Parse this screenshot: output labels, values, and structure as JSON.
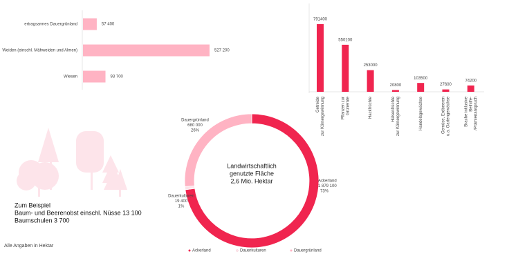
{
  "chart_data": [
    {
      "type": "bar",
      "orientation": "horizontal",
      "categories": [
        "ertragsarmes Dauergrünland",
        "Weiden (einschl. Mähweiden und Almen)",
        "Wiesen"
      ],
      "values": [
        57400,
        527200,
        93700
      ],
      "value_labels": [
        "57 400",
        "527 200",
        "93 700"
      ],
      "color": "#ffb3c3"
    },
    {
      "type": "bar",
      "orientation": "vertical",
      "categories": [
        [
          "Getreide",
          "zur Körnergewinnung"
        ],
        [
          "Pflanzen zur",
          "Grünernte"
        ],
        [
          "Hackfrüchte"
        ],
        [
          "Hülsenfrüchte",
          "zur Körnergewinnung"
        ],
        [
          "Handelsgewächse"
        ],
        [
          "Gemüse, Erdbeeren",
          "u.a. Gartengewächse"
        ],
        [
          "Brache inklusive",
          "Beihilfe-",
          "/Prämienanspruch"
        ]
      ],
      "values": [
        791400,
        550100,
        253000,
        20800,
        103500,
        27600,
        74200
      ],
      "color": "#f0254f"
    },
    {
      "type": "donut",
      "center_text": [
        "Landwirtschaftlich",
        "genutzte Fläche",
        "2,6 Mio. Hektar"
      ],
      "categories": [
        "Ackerland",
        "Dauerkulturen",
        "Dauergrünland"
      ],
      "values": [
        1879100,
        19400,
        680000
      ],
      "value_labels": [
        "1 879 100",
        "19 400",
        "680 000"
      ],
      "percent": [
        73,
        1,
        26
      ],
      "percent_labels": [
        "73%",
        "1%",
        "26%"
      ],
      "colors": [
        "#f0254f",
        "#fde4ea",
        "#ffb3c3"
      ],
      "legend": "bottom"
    }
  ],
  "note": [
    "Zum Beispiel",
    "Baum- und Beerenobst einschl. Nüsse 13 100",
    "Baumschulen 3 700"
  ],
  "footnote": "Alle Angaben in Hektar"
}
